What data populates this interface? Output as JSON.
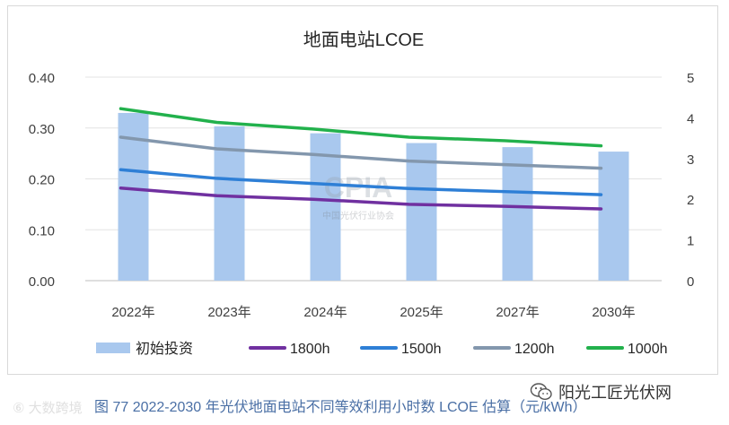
{
  "chart_data": {
    "type": "bar",
    "title": "地面电站LCOE",
    "categories": [
      "2022年",
      "2023年",
      "2024年",
      "2025年",
      "2027年",
      "2030年"
    ],
    "ylim_left": [
      0,
      0.4
    ],
    "yticks_left": [
      "0.00",
      "0.10",
      "0.20",
      "0.30",
      "0.40"
    ],
    "ylim_right": [
      0,
      5
    ],
    "yticks_right": [
      "0",
      "1",
      "2",
      "3",
      "4",
      "5"
    ],
    "bar_series": {
      "name": "初始投资",
      "axis": "right",
      "color": "#a9c8ee",
      "values": [
        4.12,
        3.79,
        3.62,
        3.38,
        3.28,
        3.17
      ]
    },
    "series": [
      {
        "name": "1800h",
        "axis": "left",
        "color": "#7030a0",
        "values": [
          0.182,
          0.167,
          0.16,
          0.15,
          0.146,
          0.141
        ]
      },
      {
        "name": "1500h",
        "axis": "left",
        "color": "#2e7fd6",
        "values": [
          0.218,
          0.201,
          0.191,
          0.181,
          0.175,
          0.169
        ]
      },
      {
        "name": "1200h",
        "axis": "left",
        "color": "#8397ad",
        "values": [
          0.282,
          0.259,
          0.248,
          0.235,
          0.228,
          0.221
        ]
      },
      {
        "name": "1000h",
        "axis": "left",
        "color": "#22b14c",
        "values": [
          0.338,
          0.311,
          0.298,
          0.282,
          0.275,
          0.265
        ]
      }
    ]
  },
  "caption": "图 77    2022-2030 年光伏地面电站不同等效利用小时数 LCOE 估算（元/kWh）",
  "watermark_center": "CPIA",
  "watermark_center_sub": "中国光伏行业协会",
  "watermark_left": "⑥ 大数跨境",
  "watermark_right": "阳光工匠光伏网"
}
